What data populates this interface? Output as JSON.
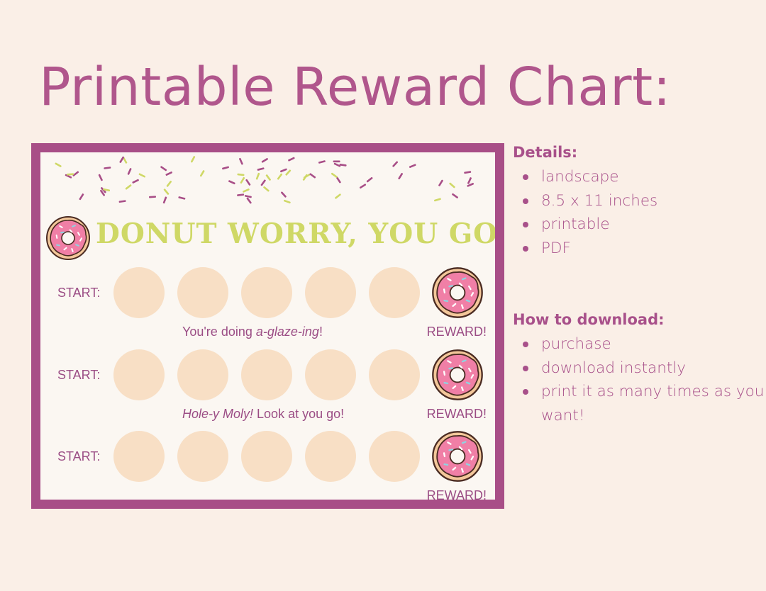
{
  "page_title": "Printable Reward Chart:",
  "card": {
    "headline": "Donut worry, you got this!",
    "rows": [
      {
        "start": "START:",
        "reward": "REWARD!"
      },
      {
        "start": "START:",
        "reward": "REWARD!"
      },
      {
        "start": "START:",
        "reward": "REWARD!"
      }
    ],
    "caption_1": {
      "pre": "You're doing ",
      "em": "a-glaze-ing",
      "post": "!"
    },
    "caption_2": {
      "em": "Hole-y Moly!",
      "post": " Look at you go!"
    }
  },
  "details": {
    "title": "Details:",
    "items": [
      "landscape",
      "8.5 x 11 inches",
      "printable",
      "PDF"
    ]
  },
  "download": {
    "title": "How to download:",
    "items": [
      "purchase",
      "download instantly",
      "print it as many times as you want!"
    ]
  },
  "colors": {
    "background": "#faefe7",
    "accent": "#a84e87",
    "headline": "#cfd866",
    "circle": "#f8dfc5",
    "donut_frosting": "#f07fa6"
  }
}
